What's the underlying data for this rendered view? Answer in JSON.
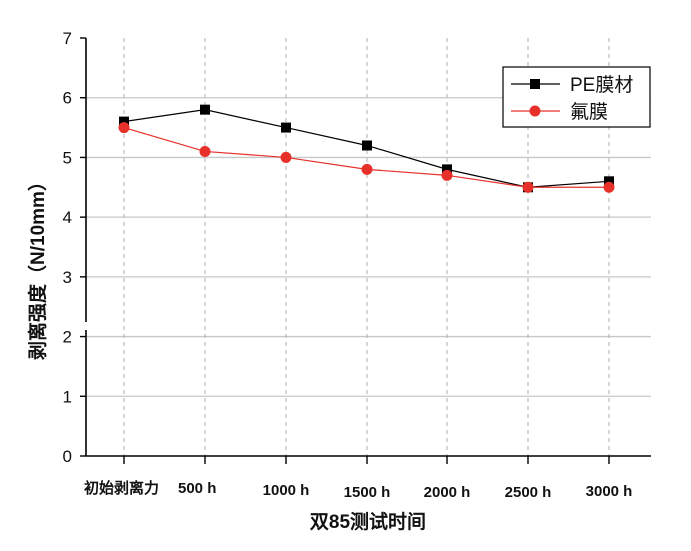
{
  "chart_data": {
    "type": "line",
    "title": "",
    "xlabel": "双85测试时间",
    "ylabel": "剥离强度（N/10mm）",
    "categories": [
      "初始剥离力",
      "500 h",
      "1000 h",
      "1500 h",
      "2000 h",
      "2500 h",
      "3000 h"
    ],
    "ylim": [
      0,
      7
    ],
    "yticks": [
      "0",
      "1",
      "2",
      "3",
      "4",
      "5",
      "6",
      "7"
    ],
    "y_axis_break": [
      2,
      3
    ],
    "grid": {
      "horizontal": true,
      "vertical_dashed": true
    },
    "legend_position": "top-right",
    "series": [
      {
        "name": "PE膜材",
        "color": "#000000",
        "marker": "square",
        "values": [
          5.6,
          5.8,
          5.5,
          5.2,
          4.8,
          4.5,
          4.6
        ]
      },
      {
        "name": "氟膜",
        "color": "#e8302a",
        "marker": "circle",
        "values": [
          5.5,
          5.1,
          5.0,
          4.8,
          4.7,
          4.5,
          4.5
        ]
      }
    ]
  }
}
